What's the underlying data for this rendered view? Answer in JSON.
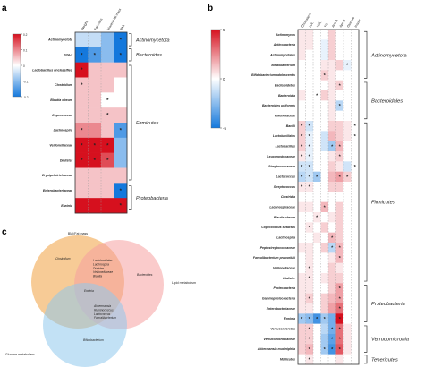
{
  "panels": {
    "a": "a",
    "b": "b",
    "c": "c"
  },
  "chart_data": [
    {
      "type": "heatmap",
      "panel": "a",
      "columns": [
        "Weight",
        "Fat mass",
        "Visceral fat mass",
        "BMI"
      ],
      "rows": [
        "Actinomycetota",
        "S24-7",
        "Lactobacillus unclassified",
        "Clostridium",
        "Blautia obeum",
        "Coprococcus",
        "Lachnospira",
        "Veillonellaceae",
        "Dialister",
        "Erysipelotrichaceae",
        "Enterobacteriaceae",
        "Erwinia"
      ],
      "values": [
        [
          -0.05,
          -0.05,
          -0.1,
          -0.4
        ],
        [
          -0.2,
          -0.15,
          -0.1,
          -0.45
        ],
        [
          0.2,
          0.05,
          0.05,
          0.05
        ],
        [
          0.05,
          0.05,
          0.05,
          0.0
        ],
        [
          0.05,
          0.05,
          0.0,
          0.0
        ],
        [
          0.05,
          0.05,
          0.05,
          0.05
        ],
        [
          0.1,
          0.1,
          0.05,
          -0.15
        ],
        [
          0.25,
          0.25,
          0.2,
          -0.1
        ],
        [
          0.2,
          0.25,
          0.15,
          -0.1
        ],
        [
          0.05,
          0.05,
          0.05,
          0.05
        ],
        [
          0.05,
          0.05,
          0.05,
          -0.3
        ],
        [
          0.25,
          0.25,
          0.3,
          0.9
        ]
      ],
      "significant": [
        [
          0,
          0,
          0,
          1
        ],
        [
          1,
          1,
          0,
          1
        ],
        [
          1,
          0,
          0,
          0
        ],
        [
          1,
          0,
          0,
          0
        ],
        [
          0,
          0,
          1,
          0
        ],
        [
          0,
          0,
          1,
          0
        ],
        [
          1,
          0,
          0,
          1
        ],
        [
          1,
          1,
          1,
          0
        ],
        [
          1,
          1,
          1,
          0
        ],
        [
          0,
          0,
          0,
          0
        ],
        [
          0,
          0,
          0,
          1
        ],
        [
          0,
          0,
          0,
          1
        ]
      ],
      "colorbar": {
        "ticks": [
          "0.2",
          "0.1",
          "0",
          "-0.1",
          "-0.2"
        ],
        "range": [
          -0.2,
          0.2
        ]
      },
      "groups": [
        {
          "label": "Actinomycetota",
          "rows": [
            0,
            0
          ]
        },
        {
          "label": "Bacteroides",
          "rows": [
            1,
            1
          ]
        },
        {
          "label": "Firmicutes",
          "rows": [
            2,
            9
          ]
        },
        {
          "label": "Proteobacteria",
          "rows": [
            10,
            11
          ]
        }
      ]
    },
    {
      "type": "heatmap",
      "panel": "b",
      "columns": [
        "Cholesterol",
        "LDL",
        "HDL",
        "TG",
        "Apo A",
        "Apo B",
        "Glucose",
        "Insulin"
      ],
      "rows": [
        "Actinomyces",
        "Actinobacteria",
        "Actinomycetales",
        "Bifidobacterium",
        "Bifidobacterium adolescentis",
        "Bacteroidetes",
        "Bacteroidia",
        "Bacteroides uniformis",
        "Rikenellaceae",
        "Bacilli",
        "Lactobacillales",
        "Lactobacillus",
        "Leuconostocaceae",
        "Streptococcaceae",
        "Lactococcus",
        "Streptococcus",
        "Clostridia",
        "Lachnospiraceae",
        "Blautia obeum",
        "Coprococcus eutactus",
        "Lachnospira",
        "Peptostreptococcaceae",
        "Faecalibacterium prausnitzii",
        "Veillonellaceae",
        "Dialister",
        "Proteobacteria",
        "Gammaproteobacteria",
        "Enterobacteriaceae",
        "Erwinia",
        "Verrucomicrobia",
        "Verrucomicrobiaceae",
        "Akkermansia muciniphila",
        "Mollicutes"
      ],
      "values": [
        [
          0.05,
          0.05,
          0,
          0,
          0.1,
          0,
          0,
          0
        ],
        [
          0.05,
          0.05,
          0,
          -0.05,
          0.1,
          0,
          0,
          0
        ],
        [
          0.05,
          0,
          0,
          -0.05,
          0.1,
          0,
          0,
          0
        ],
        [
          0,
          0,
          0,
          0.05,
          0.05,
          0.1,
          -0.05,
          0
        ],
        [
          0,
          0,
          0,
          0.1,
          0.05,
          0,
          0,
          0
        ],
        [
          0,
          0,
          0,
          0,
          0.05,
          0.1,
          0,
          0
        ],
        [
          0.05,
          0,
          0,
          0.1,
          0.05,
          0,
          0,
          0
        ],
        [
          0,
          0,
          0,
          0,
          0.05,
          -0.15,
          0,
          0
        ],
        [
          0,
          0,
          0,
          0,
          0.05,
          0,
          0,
          0
        ],
        [
          0.1,
          -0.1,
          0,
          0,
          0.1,
          0.1,
          0.05,
          0
        ],
        [
          0.1,
          -0.05,
          0,
          -0.1,
          0.15,
          0.1,
          0.05,
          0
        ],
        [
          0.1,
          -0.05,
          0,
          -0.1,
          -0.2,
          0.15,
          0,
          0
        ],
        [
          0.05,
          -0.05,
          0,
          0,
          0.05,
          0.1,
          0,
          0
        ],
        [
          -0.1,
          -0.1,
          0,
          0,
          0.1,
          0.05,
          -0.1,
          0
        ],
        [
          -0.15,
          -0.1,
          -0.2,
          0,
          0.15,
          0.2,
          0.1,
          0
        ],
        [
          0.05,
          0.05,
          0,
          0,
          0.1,
          0.1,
          0,
          0
        ],
        [
          0,
          0,
          0,
          0,
          0,
          0,
          0,
          0
        ],
        [
          0.05,
          0.05,
          0,
          0.15,
          0,
          0.1,
          0,
          0
        ],
        [
          0,
          0,
          0.05,
          0,
          0.05,
          0.1,
          0,
          0
        ],
        [
          0,
          0.05,
          0,
          0.1,
          0,
          0.1,
          0,
          0
        ],
        [
          0,
          0,
          0.05,
          0,
          0.15,
          0.1,
          0,
          0
        ],
        [
          0.05,
          0.05,
          0,
          0.1,
          -0.15,
          0.15,
          0,
          0
        ],
        [
          0,
          0.05,
          0,
          0,
          0.05,
          0.15,
          0,
          0
        ],
        [
          0,
          0.05,
          0,
          0,
          0.1,
          0.05,
          0,
          0
        ],
        [
          0.05,
          0.05,
          0,
          0.05,
          0.1,
          0.1,
          0,
          0
        ],
        [
          0.05,
          0.05,
          0,
          0,
          0.1,
          0.2,
          0,
          0
        ],
        [
          0.05,
          0.1,
          0,
          0.1,
          0.15,
          0.2,
          0,
          0
        ],
        [
          0.05,
          0.05,
          0,
          0.1,
          0.2,
          0.3,
          0,
          0
        ],
        [
          -0.2,
          -0.25,
          -0.4,
          -0.2,
          -0.3,
          0.5,
          0,
          0
        ],
        [
          0.1,
          0.1,
          0,
          -0.15,
          -0.3,
          0.3,
          0.05,
          0
        ],
        [
          0.1,
          0.1,
          0,
          -0.2,
          -0.35,
          0.3,
          0.05,
          0
        ],
        [
          0.1,
          0.15,
          0,
          -0.2,
          -0.4,
          0.35,
          0.05,
          0
        ],
        [
          0,
          0.05,
          0,
          0,
          0,
          0.05,
          0,
          0
        ]
      ],
      "significant": [
        [
          0,
          0,
          0,
          0,
          0,
          0,
          0,
          0
        ],
        [
          0,
          0,
          0,
          0,
          0,
          0,
          0,
          0
        ],
        [
          0,
          0,
          0,
          0,
          0,
          0,
          0,
          0
        ],
        [
          0,
          0,
          0,
          0,
          0,
          0,
          1,
          0
        ],
        [
          0,
          0,
          0,
          1,
          0,
          0,
          0,
          0
        ],
        [
          0,
          0,
          0,
          0,
          0,
          1,
          0,
          0
        ],
        [
          0,
          0,
          1,
          0,
          0,
          0,
          0,
          0
        ],
        [
          0,
          0,
          0,
          0,
          0,
          1,
          0,
          0
        ],
        [
          0,
          0,
          0,
          0,
          0,
          0,
          0,
          0
        ],
        [
          1,
          1,
          0,
          0,
          0,
          0,
          0,
          1
        ],
        [
          1,
          1,
          0,
          0,
          0,
          0,
          0,
          1
        ],
        [
          1,
          1,
          0,
          0,
          1,
          1,
          0,
          0
        ],
        [
          1,
          1,
          0,
          0,
          0,
          1,
          0,
          0
        ],
        [
          1,
          1,
          0,
          0,
          0,
          0,
          0,
          1
        ],
        [
          1,
          1,
          1,
          0,
          0,
          1,
          1,
          0
        ],
        [
          1,
          1,
          0,
          0,
          0,
          0,
          0,
          0
        ],
        [
          0,
          0,
          0,
          0,
          0,
          0,
          0,
          0
        ],
        [
          0,
          0,
          0,
          1,
          0,
          0,
          0,
          0
        ],
        [
          0,
          0,
          1,
          0,
          0,
          0,
          0,
          0
        ],
        [
          0,
          1,
          0,
          0,
          0,
          0,
          0,
          0
        ],
        [
          0,
          0,
          0,
          0,
          1,
          0,
          0,
          0
        ],
        [
          0,
          0,
          0,
          0,
          1,
          1,
          0,
          0
        ],
        [
          0,
          0,
          0,
          0,
          0,
          1,
          0,
          0
        ],
        [
          0,
          1,
          0,
          0,
          0,
          0,
          0,
          0
        ],
        [
          0,
          1,
          0,
          0,
          0,
          0,
          0,
          0
        ],
        [
          0,
          0,
          0,
          0,
          0,
          1,
          0,
          0
        ],
        [
          0,
          1,
          0,
          0,
          0,
          1,
          0,
          0
        ],
        [
          0,
          0,
          0,
          0,
          0,
          1,
          0,
          0
        ],
        [
          1,
          1,
          1,
          1,
          0,
          1,
          0,
          0
        ],
        [
          0,
          1,
          0,
          0,
          1,
          1,
          0,
          0
        ],
        [
          0,
          1,
          0,
          0,
          1,
          1,
          0,
          0
        ],
        [
          0,
          1,
          0,
          1,
          1,
          1,
          0,
          0
        ],
        [
          0,
          1,
          0,
          0,
          0,
          0,
          0,
          0
        ]
      ],
      "colorbar": {
        "ticks": [
          "5",
          "0",
          "-5"
        ],
        "range": [
          -5,
          5
        ]
      },
      "groups": [
        {
          "label": "Actinomycetota",
          "rows": [
            0,
            4
          ]
        },
        {
          "label": "Bacteroidales",
          "rows": [
            5,
            8
          ]
        },
        {
          "label": "Firmicutes",
          "rows": [
            9,
            24
          ]
        },
        {
          "label": "Proteobacteria",
          "rows": [
            25,
            28
          ]
        },
        {
          "label": "Verrucomicrobia",
          "rows": [
            29,
            31
          ]
        },
        {
          "label": "Tenericutes",
          "rows": [
            32,
            32
          ]
        }
      ]
    },
    {
      "type": "venn",
      "panel": "c",
      "sets": [
        {
          "label": "BMI/Fat mass",
          "color": "#f0a040"
        },
        {
          "label": "Lipid metabolism",
          "color": "#f5a0a0"
        },
        {
          "label": "Glucose metabolism",
          "color": "#90c8ec"
        }
      ],
      "regions": {
        "bmi_only": [
          "Clostridium"
        ],
        "lipid_only": [
          "Bacteroides"
        ],
        "glucose_only": [
          "Bifidobacterium"
        ],
        "bmi_lipid": [
          "Lactobacillales",
          "Lachnospira",
          "Dialister",
          "Veillonellaceae",
          "Blautia"
        ],
        "lipid_glucose": [
          "Akkermansia",
          "Ruminococcus",
          "Lactococcus",
          "Faecalibacterium"
        ],
        "all": [
          "Erwinia"
        ]
      }
    }
  ]
}
